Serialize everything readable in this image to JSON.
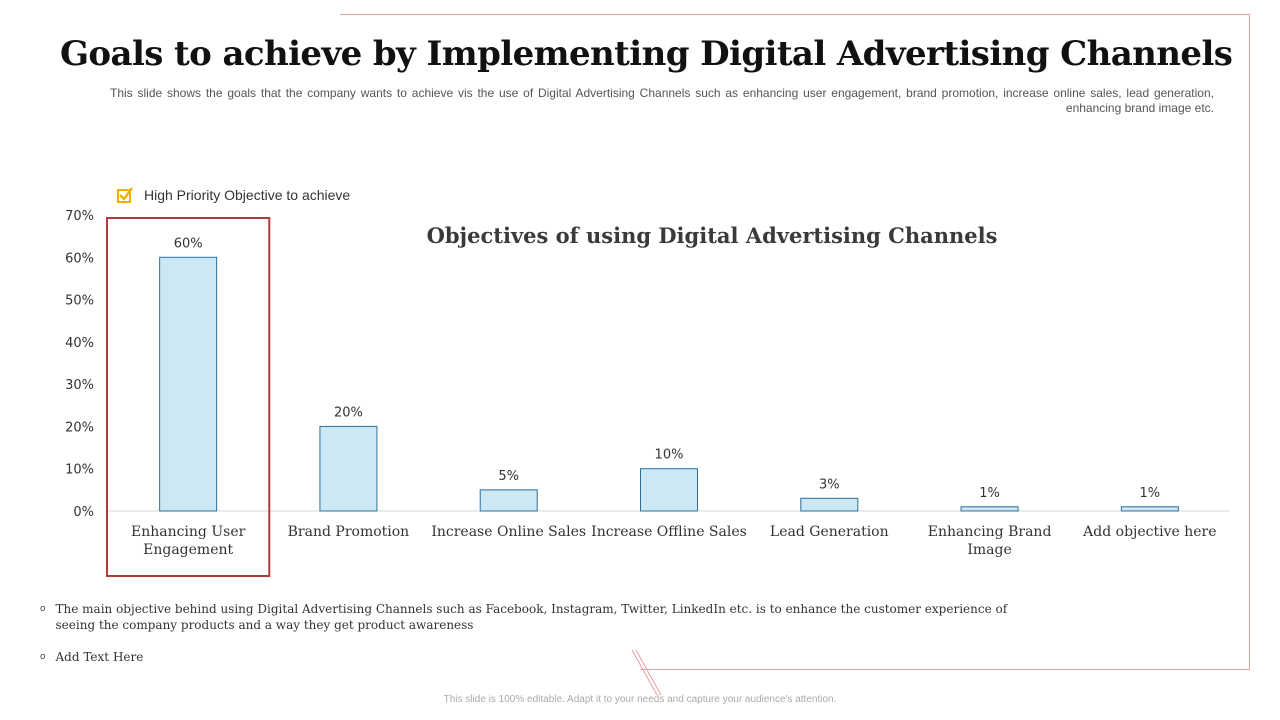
{
  "title": "Goals to achieve by Implementing Digital Advertising Channels",
  "subtitle": "This slide shows the goals that the company wants to achieve vis the use of Digital Advertising Channels such as enhancing user engagement, brand promotion, increase online sales, lead generation, enhancing brand image etc.",
  "legend": {
    "label": "High Priority Objective to achieve"
  },
  "bullets": [
    "The main objective behind using Digital Advertising Channels such as Facebook, Instagram, Twitter, LinkedIn etc. is to enhance the customer experience of seeing the company products and a way they get product awareness",
    "Add Text Here"
  ],
  "footer": "This slide is 100% editable. Adapt it to your needs and capture your audience's attention.",
  "colors": {
    "bar_fill": "#cce8f4",
    "bar_stroke": "#2e6e96",
    "highlight_box": "#b03a3a",
    "check_icon": "#f0b000",
    "frame": "#e8a0a0"
  },
  "chart_data": {
    "type": "bar",
    "title": "Objectives of using Digital Advertising Channels",
    "categories": [
      "Enhancing User Engagement",
      "Brand Promotion",
      "Increase Online Sales",
      "Increase Offline Sales",
      "Lead Generation",
      "Enhancing Brand Image",
      "Add objective here"
    ],
    "category_lines": [
      [
        "Enhancing User",
        "Engagement"
      ],
      [
        "Brand Promotion"
      ],
      [
        "Increase Online Sales"
      ],
      [
        "Increase Offline Sales"
      ],
      [
        "Lead Generation"
      ],
      [
        "Enhancing Brand",
        "Image"
      ],
      [
        "Add objective here"
      ]
    ],
    "values": [
      60,
      20,
      5,
      10,
      3,
      1,
      1
    ],
    "data_labels": [
      "60%",
      "20%",
      "5%",
      "10%",
      "3%",
      "1%",
      "1%"
    ],
    "yticks": [
      0,
      10,
      20,
      30,
      40,
      50,
      60,
      70
    ],
    "ytick_labels": [
      "0%",
      "10%",
      "20%",
      "30%",
      "40%",
      "50%",
      "60%",
      "70%"
    ],
    "ylim": [
      0,
      70
    ],
    "xlabel": "",
    "ylabel": "",
    "grid": false,
    "highlighted_category": "Enhancing User Engagement"
  }
}
